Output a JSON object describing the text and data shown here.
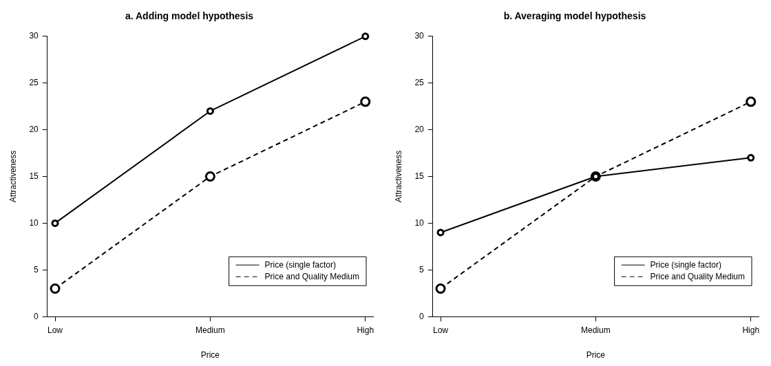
{
  "chart_data": [
    {
      "type": "line",
      "title": "a. Adding model hypothesis",
      "xlabel": "Price",
      "ylabel": "Attractiveness",
      "categories": [
        "Low",
        "Medium",
        "High"
      ],
      "series": [
        {
          "name": "Price (single factor)",
          "color": "#000000",
          "values": [
            10,
            22,
            30
          ],
          "line_style": "solid"
        },
        {
          "name": "Price and Quality Medium",
          "color": "#000000",
          "values": [
            3,
            15,
            23
          ],
          "line_style": "dashed"
        }
      ],
      "ylim": [
        0,
        30
      ],
      "yticks": [
        0,
        5,
        10,
        15,
        20,
        25,
        30
      ],
      "grid": false,
      "legend": "bottom right",
      "marker": "circle"
    },
    {
      "type": "line",
      "title": "b. Averaging model hypothesis",
      "xlabel": "Price",
      "ylabel": "Attractiveness",
      "categories": [
        "Low",
        "Medium",
        "High"
      ],
      "series": [
        {
          "name": "Price (single factor)",
          "color": "#000000",
          "values": [
            9,
            15,
            17
          ],
          "line_style": "solid"
        },
        {
          "name": "Price and Quality Medium",
          "color": "#000000",
          "values": [
            3,
            15,
            23
          ],
          "line_style": "dashed"
        }
      ],
      "ylim": [
        0,
        30
      ],
      "yticks": [
        0,
        5,
        10,
        15,
        20,
        25,
        30
      ],
      "grid": false,
      "legend": "bottom right",
      "marker": "circle"
    }
  ]
}
